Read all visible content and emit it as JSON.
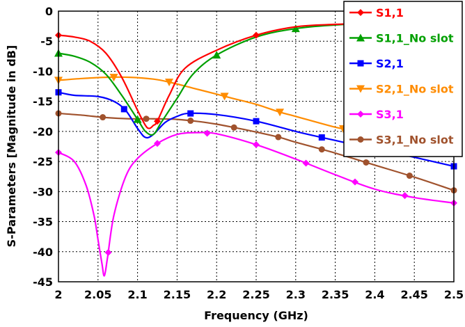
{
  "chart_data": {
    "type": "line",
    "xlabel": "Frequency (GHz)",
    "ylabel": "S-Parameters [Magnitude in dB]",
    "xlim": [
      2,
      2.5
    ],
    "ylim": [
      -45,
      0
    ],
    "xticks": [
      "2",
      "2.05",
      "2.1",
      "2.15",
      "2.2",
      "2.25",
      "2.3",
      "2.35",
      "2.4",
      "2.45",
      "2.5"
    ],
    "yticks": [
      "0",
      "-5",
      "-10",
      "-15",
      "-20",
      "-25",
      "-30",
      "-35",
      "-40",
      "-45"
    ],
    "grid": true,
    "legend_position": "top-right",
    "series": [
      {
        "name": "S1,1",
        "color": "#ff0000",
        "marker": "diamond",
        "x": [
          2,
          2.02,
          2.04,
          2.06,
          2.08,
          2.1,
          2.11,
          2.115,
          2.12,
          2.125,
          2.14,
          2.16,
          2.2,
          2.25,
          2.3,
          2.35,
          2.4,
          2.45,
          2.5
        ],
        "y": [
          -4,
          -4.3,
          -5,
          -7,
          -11,
          -16.5,
          -19,
          -19.5,
          -19,
          -18.3,
          -14,
          -9.5,
          -6.5,
          -4,
          -2.6,
          -2.2,
          -2.0,
          -1.8,
          -1.6
        ],
        "marker_x": [
          2,
          2.125,
          2.25
        ]
      },
      {
        "name": "S1,1_No slot",
        "color": "#00a000",
        "marker": "triangle",
        "x": [
          2,
          2.02,
          2.04,
          2.06,
          2.08,
          2.1,
          2.11,
          2.12,
          2.13,
          2.15,
          2.17,
          2.2,
          2.25,
          2.3,
          2.35,
          2.4,
          2.45,
          2.5
        ],
        "y": [
          -7,
          -7.5,
          -8.5,
          -10.5,
          -14,
          -18,
          -20,
          -20.5,
          -18.5,
          -14.5,
          -10.5,
          -7.3,
          -4.3,
          -2.9,
          -2.3,
          -2.0,
          -1.8,
          -1.6
        ],
        "marker_x": [
          2,
          2.1,
          2.2,
          2.3
        ]
      },
      {
        "name": "S2,1",
        "color": "#0000ff",
        "marker": "square",
        "x": [
          2,
          2.02,
          2.05,
          2.07,
          2.085,
          2.1,
          2.11,
          2.12,
          2.135,
          2.15,
          2.165,
          2.2,
          2.25,
          2.3,
          2.333,
          2.35,
          2.4,
          2.417,
          2.45,
          2.5
        ],
        "y": [
          -13.5,
          -14,
          -14.2,
          -15,
          -16.5,
          -19.5,
          -21,
          -20.5,
          -18.5,
          -17.5,
          -17,
          -17.2,
          -18.3,
          -20,
          -21,
          -21.5,
          -23,
          -23.4,
          -24.3,
          -25.8
        ],
        "marker_x": [
          2,
          2.083,
          2.167,
          2.25,
          2.333,
          2.417,
          2.5
        ]
      },
      {
        "name": "S2,1_No slot",
        "color": "#ff8c00",
        "marker": "triangle-down",
        "x": [
          2,
          2.03,
          2.06,
          2.09,
          2.12,
          2.14,
          2.17,
          2.2,
          2.22,
          2.25,
          2.28,
          2.3,
          2.35,
          2.37,
          2.4,
          2.45,
          2.5
        ],
        "y": [
          -11.5,
          -11.2,
          -11,
          -11,
          -11.3,
          -11.8,
          -12.8,
          -13.8,
          -14.5,
          -15.5,
          -16.8,
          -17.5,
          -19.3,
          -19.8,
          -20.8,
          -22.2,
          -23.5
        ],
        "marker_x": [
          2,
          2.07,
          2.14,
          2.21,
          2.28,
          2.36,
          2.43
        ]
      },
      {
        "name": "S3,1",
        "color": "#ff00ff",
        "marker": "diamond",
        "x": [
          2,
          2.02,
          2.035,
          2.045,
          2.05,
          2.055,
          2.058,
          2.062,
          2.07,
          2.085,
          2.1,
          2.125,
          2.15,
          2.175,
          2.2,
          2.25,
          2.3,
          2.35,
          2.4,
          2.45,
          2.5
        ],
        "y": [
          -23.5,
          -25,
          -29,
          -34,
          -38,
          -42,
          -44,
          -41,
          -34,
          -27.5,
          -24.5,
          -22,
          -20.5,
          -20.2,
          -20.4,
          -22.2,
          -24.6,
          -27.2,
          -29.6,
          -31,
          -31.9
        ],
        "marker_x": [
          2,
          2.063,
          2.125,
          2.188,
          2.25,
          2.313,
          2.375,
          2.438,
          2.5
        ]
      },
      {
        "name": "S3,1_No slot",
        "color": "#a0522d",
        "marker": "circle",
        "x": [
          2,
          2.03,
          2.06,
          2.09,
          2.12,
          2.15,
          2.18,
          2.2,
          2.22,
          2.25,
          2.28,
          2.3,
          2.35,
          2.4,
          2.45,
          2.5
        ],
        "y": [
          -17,
          -17.3,
          -17.7,
          -17.9,
          -17.9,
          -18,
          -18.4,
          -18.8,
          -19.3,
          -20.1,
          -21,
          -21.8,
          -23.6,
          -25.6,
          -27.6,
          -29.8
        ],
        "marker_x": [
          2,
          2.056,
          2.111,
          2.167,
          2.222,
          2.278,
          2.333,
          2.389,
          2.444,
          2.5
        ]
      }
    ]
  }
}
